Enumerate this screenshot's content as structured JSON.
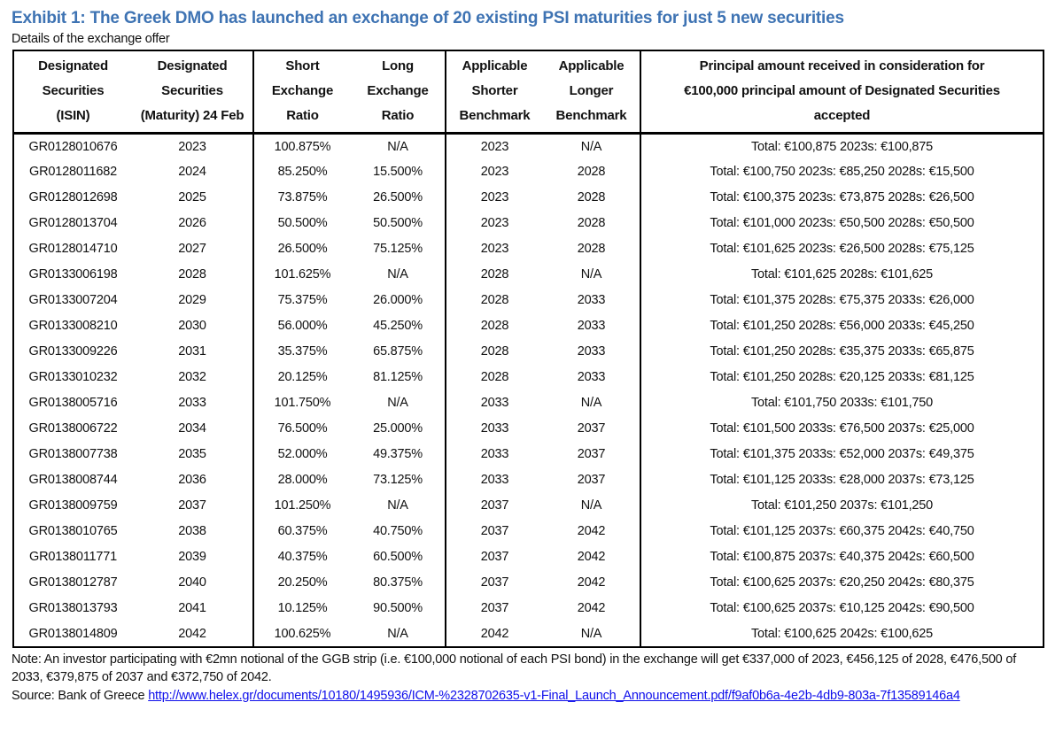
{
  "title": "Exhibit 1: The Greek DMO has launched an exchange of 20 existing PSI maturities for just 5 new securities",
  "subtitle": "Details of the exchange offer",
  "colors": {
    "accent_blue": "#3e73b3",
    "link_blue": "#0f0feb"
  },
  "table": {
    "headers": {
      "isin": [
        "Designated",
        "Securities",
        "(ISIN)"
      ],
      "maturity": [
        "Designated",
        "Securities",
        "(Maturity) 24 Feb"
      ],
      "short_ratio": [
        "Short",
        "Exchange",
        "Ratio"
      ],
      "long_ratio": [
        "Long",
        "Exchange",
        "Ratio"
      ],
      "shorter_benchmark": [
        "Applicable",
        "Shorter",
        "Benchmark"
      ],
      "longer_benchmark": [
        "Applicable",
        "Longer",
        "Benchmark"
      ],
      "principal": [
        "Principal amount received in consideration for",
        "€100,000 principal amount of Designated Securities",
        "accepted"
      ]
    },
    "row_keys": [
      "isin",
      "maturity",
      "short_ratio",
      "long_ratio",
      "shorter_benchmark",
      "longer_benchmark",
      "principal"
    ],
    "rows": [
      {
        "isin": "GR0128010676",
        "maturity": "2023",
        "short_ratio": "100.875%",
        "long_ratio": "N/A",
        "shorter_benchmark": "2023",
        "longer_benchmark": "N/A",
        "principal": "Total: €100,875 2023s: €100,875"
      },
      {
        "isin": "GR0128011682",
        "maturity": "2024",
        "short_ratio": "85.250%",
        "long_ratio": "15.500%",
        "shorter_benchmark": "2023",
        "longer_benchmark": "2028",
        "principal": "Total: €100,750 2023s: €85,250 2028s: €15,500"
      },
      {
        "isin": "GR0128012698",
        "maturity": "2025",
        "short_ratio": "73.875%",
        "long_ratio": "26.500%",
        "shorter_benchmark": "2023",
        "longer_benchmark": "2028",
        "principal": "Total: €100,375 2023s: €73,875 2028s: €26,500"
      },
      {
        "isin": "GR0128013704",
        "maturity": "2026",
        "short_ratio": "50.500%",
        "long_ratio": "50.500%",
        "shorter_benchmark": "2023",
        "longer_benchmark": "2028",
        "principal": "Total: €101,000 2023s: €50,500 2028s: €50,500"
      },
      {
        "isin": "GR0128014710",
        "maturity": "2027",
        "short_ratio": "26.500%",
        "long_ratio": "75.125%",
        "shorter_benchmark": "2023",
        "longer_benchmark": "2028",
        "principal": "Total: €101,625 2023s: €26,500 2028s: €75,125"
      },
      {
        "isin": "GR0133006198",
        "maturity": "2028",
        "short_ratio": "101.625%",
        "long_ratio": "N/A",
        "shorter_benchmark": "2028",
        "longer_benchmark": "N/A",
        "principal": "Total: €101,625 2028s: €101,625"
      },
      {
        "isin": "GR0133007204",
        "maturity": "2029",
        "short_ratio": "75.375%",
        "long_ratio": "26.000%",
        "shorter_benchmark": "2028",
        "longer_benchmark": "2033",
        "principal": "Total: €101,375 2028s: €75,375 2033s: €26,000"
      },
      {
        "isin": "GR0133008210",
        "maturity": "2030",
        "short_ratio": "56.000%",
        "long_ratio": "45.250%",
        "shorter_benchmark": "2028",
        "longer_benchmark": "2033",
        "principal": "Total: €101,250 2028s: €56,000 2033s: €45,250"
      },
      {
        "isin": "GR0133009226",
        "maturity": "2031",
        "short_ratio": "35.375%",
        "long_ratio": "65.875%",
        "shorter_benchmark": "2028",
        "longer_benchmark": "2033",
        "principal": "Total: €101,250 2028s: €35,375 2033s: €65,875"
      },
      {
        "isin": "GR0133010232",
        "maturity": "2032",
        "short_ratio": "20.125%",
        "long_ratio": "81.125%",
        "shorter_benchmark": "2028",
        "longer_benchmark": "2033",
        "principal": "Total: €101,250 2028s: €20,125 2033s: €81,125"
      },
      {
        "isin": "GR0138005716",
        "maturity": "2033",
        "short_ratio": "101.750%",
        "long_ratio": "N/A",
        "shorter_benchmark": "2033",
        "longer_benchmark": "N/A",
        "principal": "Total: €101,750 2033s: €101,750"
      },
      {
        "isin": "GR0138006722",
        "maturity": "2034",
        "short_ratio": "76.500%",
        "long_ratio": "25.000%",
        "shorter_benchmark": "2033",
        "longer_benchmark": "2037",
        "principal": "Total: €101,500 2033s: €76,500 2037s: €25,000"
      },
      {
        "isin": "GR0138007738",
        "maturity": "2035",
        "short_ratio": "52.000%",
        "long_ratio": "49.375%",
        "shorter_benchmark": "2033",
        "longer_benchmark": "2037",
        "principal": "Total: €101,375 2033s: €52,000 2037s: €49,375"
      },
      {
        "isin": "GR0138008744",
        "maturity": "2036",
        "short_ratio": "28.000%",
        "long_ratio": "73.125%",
        "shorter_benchmark": "2033",
        "longer_benchmark": "2037",
        "principal": "Total: €101,125 2033s: €28,000 2037s: €73,125"
      },
      {
        "isin": "GR0138009759",
        "maturity": "2037",
        "short_ratio": "101.250%",
        "long_ratio": "N/A",
        "shorter_benchmark": "2037",
        "longer_benchmark": "N/A",
        "principal": "Total: €101,250 2037s: €101,250"
      },
      {
        "isin": "GR0138010765",
        "maturity": "2038",
        "short_ratio": "60.375%",
        "long_ratio": "40.750%",
        "shorter_benchmark": "2037",
        "longer_benchmark": "2042",
        "principal": "Total: €101,125 2037s: €60,375 2042s: €40,750"
      },
      {
        "isin": "GR0138011771",
        "maturity": "2039",
        "short_ratio": "40.375%",
        "long_ratio": "60.500%",
        "shorter_benchmark": "2037",
        "longer_benchmark": "2042",
        "principal": "Total: €100,875 2037s: €40,375 2042s: €60,500"
      },
      {
        "isin": "GR0138012787",
        "maturity": "2040",
        "short_ratio": "20.250%",
        "long_ratio": "80.375%",
        "shorter_benchmark": "2037",
        "longer_benchmark": "2042",
        "principal": "Total: €100,625 2037s: €20,250 2042s: €80,375"
      },
      {
        "isin": "GR0138013793",
        "maturity": "2041",
        "short_ratio": "10.125%",
        "long_ratio": "90.500%",
        "shorter_benchmark": "2037",
        "longer_benchmark": "2042",
        "principal": "Total: €100,625 2037s: €10,125 2042s: €90,500"
      },
      {
        "isin": "GR0138014809",
        "maturity": "2042",
        "short_ratio": "100.625%",
        "long_ratio": "N/A",
        "shorter_benchmark": "2042",
        "longer_benchmark": "N/A",
        "principal": "Total: €100,625 2042s: €100,625"
      }
    ]
  },
  "note": "Note: An investor participating with €2mn notional of the GGB strip (i.e. €100,000 notional of each PSI bond) in the exchange will get €337,000 of 2023, €456,125 of 2028, €476,500 of 2033, €379,875 of 2037 and €372,750 of 2042.",
  "source": {
    "prefix": "Source: Bank of Greece ",
    "link": "http://www.helex.gr/documents/10180/1495936/ICM-%2328702635-v1-Final_Launch_Announcement.pdf/f9af0b6a-4e2b-4db9-803a-7f13589146a4"
  }
}
